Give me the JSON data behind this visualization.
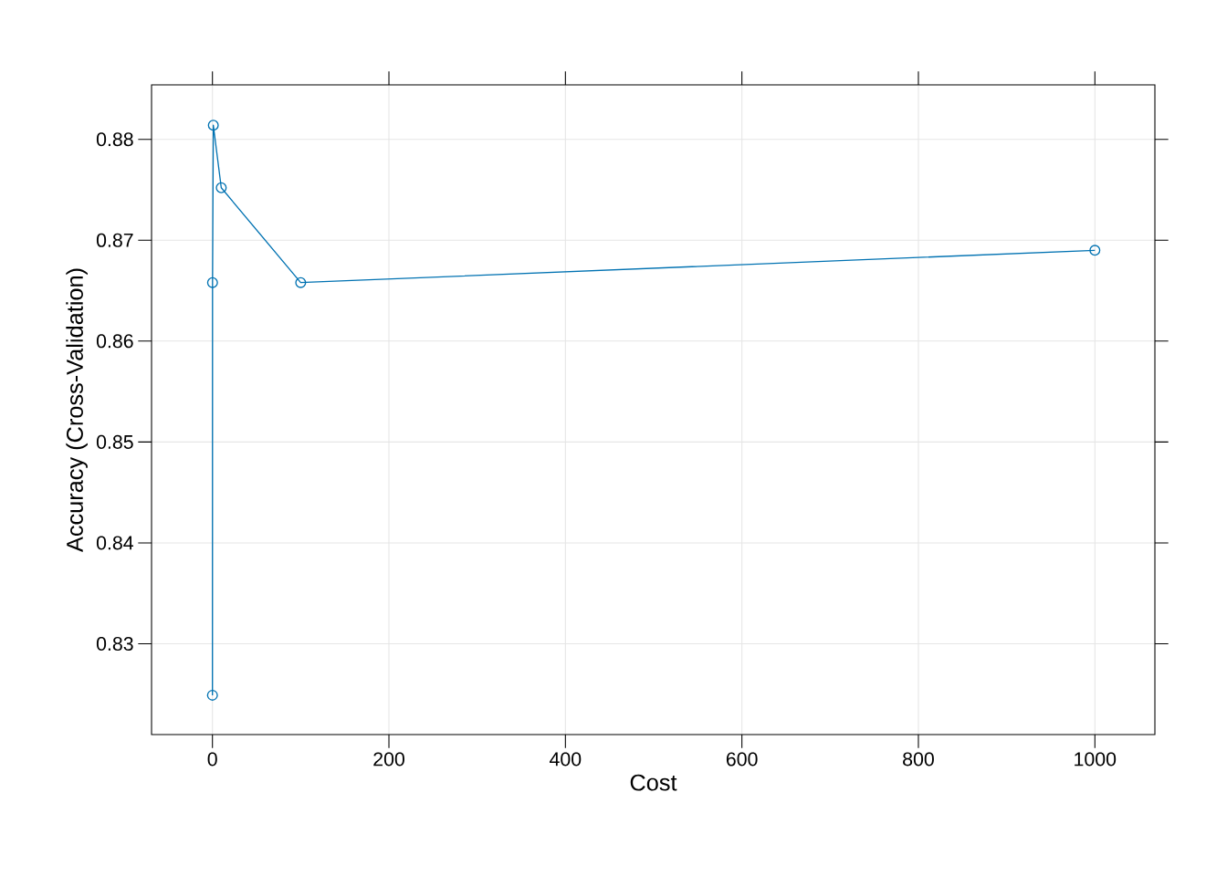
{
  "chart_data": {
    "type": "line",
    "xlabel": "Cost",
    "ylabel": "Accuracy (Cross-Validation)",
    "x": [
      0.01,
      0.1,
      1,
      10,
      100,
      1000
    ],
    "series": [
      {
        "color": "#0072b2",
        "values": [
          0.8249,
          0.8658,
          0.8814,
          0.8752,
          0.8658,
          0.869
        ]
      }
    ],
    "xlim": [
      -69,
      1068
    ],
    "ylim": [
      0.821,
      0.8854
    ],
    "xticks": [
      0,
      200,
      400,
      600,
      800,
      1000
    ],
    "yticks": [
      {
        "value": 0.83,
        "label": "0.83"
      },
      {
        "value": 0.84,
        "label": "0.84"
      },
      {
        "value": 0.85,
        "label": "0.85"
      },
      {
        "value": 0.86,
        "label": "0.86"
      },
      {
        "value": 0.87,
        "label": "0.87"
      },
      {
        "value": 0.88,
        "label": "0.88"
      }
    ],
    "grid": true,
    "marker": "circle",
    "line_style": "solid"
  }
}
